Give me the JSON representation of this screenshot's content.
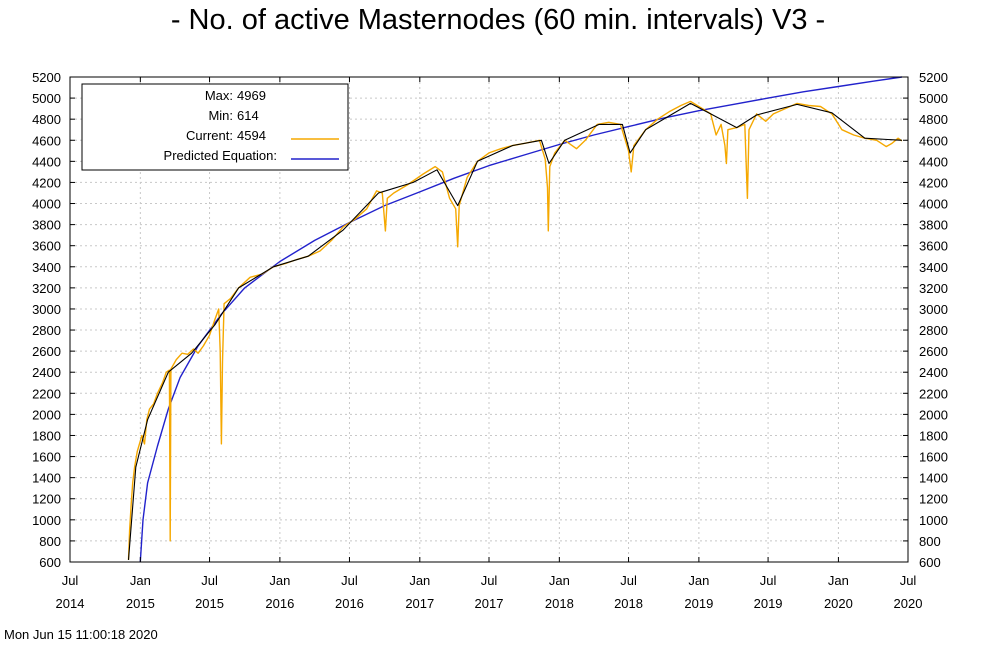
{
  "title": "- No. of active Masternodes (60 min. intervals) V3 -",
  "timestamp": "Mon Jun 15 11:00:18 2020",
  "legend": {
    "max_label": "Max:",
    "max_value": "4969",
    "min_label": "Min:",
    "min_value": "614",
    "current_label": "Current:",
    "current_value": "4594",
    "predicted_label": "Predicted Equation:"
  },
  "colors": {
    "current": "#f5a800",
    "trend": "#000000",
    "predicted": "#2222cc",
    "grid": "#c8c8c8"
  },
  "chart_data": {
    "type": "line",
    "title": "- No. of active Masternodes (60 min. intervals) V3 -",
    "xlabel": "",
    "ylabel": "",
    "xlim": [
      "2014-07-01",
      "2020-07-01"
    ],
    "ylim": [
      600,
      5200
    ],
    "y_ticks": [
      600,
      800,
      1000,
      1200,
      1400,
      1600,
      1800,
      2000,
      2200,
      2400,
      2600,
      2800,
      3000,
      3200,
      3400,
      3600,
      3800,
      4000,
      4200,
      4400,
      4600,
      4800,
      5000,
      5200
    ],
    "x_ticks": [
      {
        "date": "2014-07-01",
        "month": "Jul",
        "year": "2014"
      },
      {
        "date": "2015-01-01",
        "month": "Jan",
        "year": "2015"
      },
      {
        "date": "2015-07-01",
        "month": "Jul",
        "year": "2015"
      },
      {
        "date": "2016-01-01",
        "month": "Jan",
        "year": "2016"
      },
      {
        "date": "2016-07-01",
        "month": "Jul",
        "year": "2016"
      },
      {
        "date": "2017-01-01",
        "month": "Jan",
        "year": "2017"
      },
      {
        "date": "2017-07-01",
        "month": "Jul",
        "year": "2017"
      },
      {
        "date": "2018-01-01",
        "month": "Jan",
        "year": "2018"
      },
      {
        "date": "2018-07-01",
        "month": "Jul",
        "year": "2018"
      },
      {
        "date": "2019-01-01",
        "month": "Jan",
        "year": "2019"
      },
      {
        "date": "2019-07-01",
        "month": "Jul",
        "year": "2019"
      },
      {
        "date": "2020-01-01",
        "month": "Jan",
        "year": "2020"
      },
      {
        "date": "2020-07-01",
        "month": "Jul",
        "year": "2020"
      }
    ],
    "grid": true,
    "legend_position": "top-left",
    "series": [
      {
        "name": "Current",
        "color": "#f5a800",
        "points": [
          [
            "2014-12-01",
            620
          ],
          [
            "2014-12-04",
            900
          ],
          [
            "2014-12-08",
            1150
          ],
          [
            "2014-12-12",
            1350
          ],
          [
            "2014-12-17",
            1500
          ],
          [
            "2014-12-24",
            1650
          ],
          [
            "2015-01-05",
            1800
          ],
          [
            "2015-01-12",
            1720
          ],
          [
            "2015-01-18",
            1950
          ],
          [
            "2015-01-25",
            2050
          ],
          [
            "2015-02-05",
            2100
          ],
          [
            "2015-02-15",
            2200
          ],
          [
            "2015-02-28",
            2300
          ],
          [
            "2015-03-10",
            2400
          ],
          [
            "2015-03-18",
            2420
          ],
          [
            "2015-03-20",
            800
          ],
          [
            "2015-03-22",
            2430
          ],
          [
            "2015-04-05",
            2520
          ],
          [
            "2015-04-20",
            2580
          ],
          [
            "2015-05-05",
            2570
          ],
          [
            "2015-05-20",
            2620
          ],
          [
            "2015-06-01",
            2580
          ],
          [
            "2015-06-15",
            2650
          ],
          [
            "2015-07-01",
            2750
          ],
          [
            "2015-07-15",
            2900
          ],
          [
            "2015-07-25",
            3000
          ],
          [
            "2015-07-29",
            2600
          ],
          [
            "2015-08-01",
            1720
          ],
          [
            "2015-08-04",
            2500
          ],
          [
            "2015-08-08",
            3050
          ],
          [
            "2015-08-25",
            3100
          ],
          [
            "2015-09-15",
            3200
          ],
          [
            "2015-10-15",
            3300
          ],
          [
            "2015-11-15",
            3330
          ],
          [
            "2015-12-15",
            3400
          ],
          [
            "2016-01-15",
            3430
          ],
          [
            "2016-02-15",
            3470
          ],
          [
            "2016-03-15",
            3500
          ],
          [
            "2016-04-15",
            3550
          ],
          [
            "2016-05-15",
            3650
          ],
          [
            "2016-06-15",
            3780
          ],
          [
            "2016-07-15",
            3850
          ],
          [
            "2016-08-15",
            3950
          ],
          [
            "2016-09-10",
            4120
          ],
          [
            "2016-09-25",
            4100
          ],
          [
            "2016-10-03",
            3740
          ],
          [
            "2016-10-08",
            4050
          ],
          [
            "2016-10-25",
            4100
          ],
          [
            "2016-12-01",
            4180
          ],
          [
            "2017-01-10",
            4280
          ],
          [
            "2017-02-10",
            4350
          ],
          [
            "2017-03-01",
            4300
          ],
          [
            "2017-03-20",
            4050
          ],
          [
            "2017-04-05",
            3950
          ],
          [
            "2017-04-10",
            3590
          ],
          [
            "2017-04-14",
            3980
          ],
          [
            "2017-05-05",
            4250
          ],
          [
            "2017-06-01",
            4400
          ],
          [
            "2017-07-01",
            4480
          ],
          [
            "2017-08-01",
            4520
          ],
          [
            "2017-09-01",
            4550
          ],
          [
            "2017-10-01",
            4570
          ],
          [
            "2017-11-10",
            4600
          ],
          [
            "2017-11-25",
            4420
          ],
          [
            "2017-12-01",
            4150
          ],
          [
            "2017-12-03",
            3740
          ],
          [
            "2017-12-07",
            4350
          ],
          [
            "2017-12-20",
            4480
          ],
          [
            "2018-01-15",
            4600
          ],
          [
            "2018-02-15",
            4520
          ],
          [
            "2018-03-10",
            4600
          ],
          [
            "2018-04-10",
            4750
          ],
          [
            "2018-05-10",
            4770
          ],
          [
            "2018-06-10",
            4750
          ],
          [
            "2018-07-01",
            4500
          ],
          [
            "2018-07-08",
            4300
          ],
          [
            "2018-07-15",
            4550
          ],
          [
            "2018-08-15",
            4700
          ],
          [
            "2018-09-15",
            4800
          ],
          [
            "2018-10-15",
            4870
          ],
          [
            "2018-11-15",
            4930
          ],
          [
            "2018-12-10",
            4969
          ],
          [
            "2019-01-10",
            4900
          ],
          [
            "2019-02-01",
            4850
          ],
          [
            "2019-02-15",
            4650
          ],
          [
            "2019-02-28",
            4750
          ],
          [
            "2019-03-10",
            4550
          ],
          [
            "2019-03-14",
            4380
          ],
          [
            "2019-03-18",
            4700
          ],
          [
            "2019-04-10",
            4720
          ],
          [
            "2019-05-01",
            4750
          ],
          [
            "2019-05-08",
            4050
          ],
          [
            "2019-05-12",
            4700
          ],
          [
            "2019-06-01",
            4850
          ],
          [
            "2019-06-25",
            4780
          ],
          [
            "2019-07-15",
            4850
          ],
          [
            "2019-08-15",
            4900
          ],
          [
            "2019-09-15",
            4950
          ],
          [
            "2019-10-15",
            4930
          ],
          [
            "2019-11-15",
            4920
          ],
          [
            "2019-12-15",
            4850
          ],
          [
            "2020-01-10",
            4700
          ],
          [
            "2020-02-10",
            4650
          ],
          [
            "2020-03-10",
            4620
          ],
          [
            "2020-04-10",
            4600
          ],
          [
            "2020-05-05",
            4540
          ],
          [
            "2020-05-20",
            4570
          ],
          [
            "2020-06-05",
            4620
          ],
          [
            "2020-06-15",
            4594
          ]
        ]
      },
      {
        "name": "",
        "color": "#000000",
        "points": [
          [
            "2014-12-01",
            620
          ],
          [
            "2014-12-20",
            1500
          ],
          [
            "2015-01-20",
            1950
          ],
          [
            "2015-03-15",
            2400
          ],
          [
            "2015-05-15",
            2580
          ],
          [
            "2015-07-15",
            2850
          ],
          [
            "2015-09-15",
            3200
          ],
          [
            "2015-12-15",
            3400
          ],
          [
            "2016-03-15",
            3500
          ],
          [
            "2016-06-15",
            3750
          ],
          [
            "2016-09-15",
            4100
          ],
          [
            "2016-12-15",
            4200
          ],
          [
            "2017-02-15",
            4320
          ],
          [
            "2017-04-10",
            3980
          ],
          [
            "2017-06-01",
            4400
          ],
          [
            "2017-09-01",
            4550
          ],
          [
            "2017-11-15",
            4600
          ],
          [
            "2017-12-05",
            4380
          ],
          [
            "2018-01-15",
            4600
          ],
          [
            "2018-04-15",
            4750
          ],
          [
            "2018-06-15",
            4750
          ],
          [
            "2018-07-05",
            4480
          ],
          [
            "2018-08-15",
            4700
          ],
          [
            "2018-12-10",
            4950
          ],
          [
            "2019-02-01",
            4850
          ],
          [
            "2019-04-10",
            4720
          ],
          [
            "2019-06-01",
            4840
          ],
          [
            "2019-09-15",
            4940
          ],
          [
            "2019-12-15",
            4860
          ],
          [
            "2020-03-10",
            4620
          ],
          [
            "2020-06-15",
            4600
          ]
        ]
      },
      {
        "name": "Predicted Equation",
        "color": "#2222cc",
        "points": [
          [
            "2015-01-01",
            600
          ],
          [
            "2015-01-08",
            1000
          ],
          [
            "2015-01-20",
            1350
          ],
          [
            "2015-02-15",
            1700
          ],
          [
            "2015-03-15",
            2050
          ],
          [
            "2015-04-15",
            2350
          ],
          [
            "2015-06-01",
            2650
          ],
          [
            "2015-08-01",
            2950
          ],
          [
            "2015-10-01",
            3200
          ],
          [
            "2016-01-01",
            3450
          ],
          [
            "2016-04-01",
            3650
          ],
          [
            "2016-07-01",
            3820
          ],
          [
            "2016-10-01",
            3980
          ],
          [
            "2017-01-01",
            4110
          ],
          [
            "2017-04-01",
            4240
          ],
          [
            "2017-07-01",
            4360
          ],
          [
            "2017-10-01",
            4460
          ],
          [
            "2018-01-01",
            4560
          ],
          [
            "2018-04-01",
            4650
          ],
          [
            "2018-07-01",
            4730
          ],
          [
            "2018-10-01",
            4810
          ],
          [
            "2019-01-01",
            4880
          ],
          [
            "2019-04-01",
            4940
          ],
          [
            "2019-07-01",
            5000
          ],
          [
            "2019-10-01",
            5060
          ],
          [
            "2020-01-01",
            5110
          ],
          [
            "2020-04-01",
            5160
          ],
          [
            "2020-06-15",
            5200
          ]
        ]
      }
    ]
  }
}
